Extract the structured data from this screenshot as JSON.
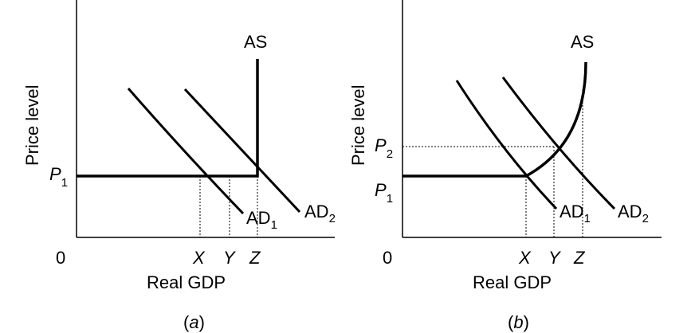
{
  "panel_a": {
    "caption_prefix": "(",
    "caption_letter": "a",
    "caption_suffix": ")",
    "y_axis_label": "Price  level",
    "x_axis_label": "Real GDP",
    "origin": "0",
    "price_label": "P",
    "price_sub": "1",
    "as_label": "AS",
    "ad1_label": "AD",
    "ad1_sub": "1",
    "ad2_label": "AD",
    "ad2_sub": "2",
    "x_ticks": [
      "X",
      "Y",
      "Z"
    ]
  },
  "panel_b": {
    "caption_prefix": "(",
    "caption_letter": "b",
    "caption_suffix": ")",
    "y_axis_label": "Price  level",
    "x_axis_label": "Real GDP",
    "origin": "0",
    "p1_label": "P",
    "p1_sub": "1",
    "p2_label": "P",
    "p2_sub": "2",
    "as_label": "AS",
    "ad1_label": "AD",
    "ad1_sub": "1",
    "ad2_label": "AD",
    "ad2_sub": "2",
    "x_ticks": [
      "X",
      "Y",
      "Z"
    ]
  },
  "colors": {
    "ink": "#000000",
    "background": "#ffffff"
  }
}
